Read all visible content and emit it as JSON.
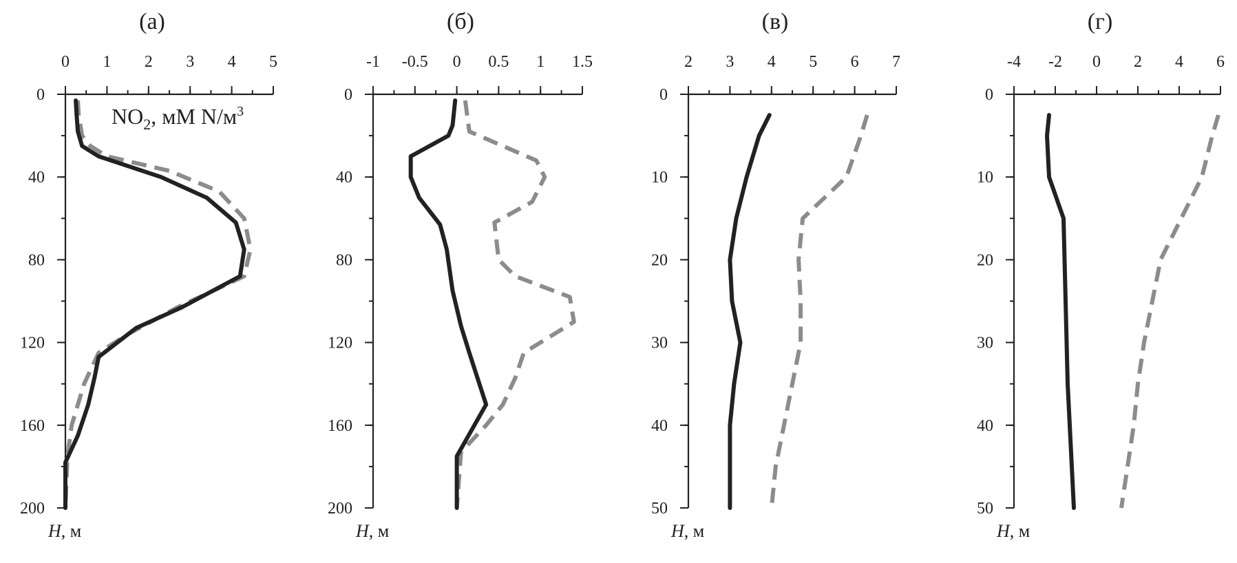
{
  "chart_data": [
    {
      "type": "line",
      "panel_label": "(а)",
      "annotation": {
        "main": "NO",
        "sub": "2",
        "rest": ", мМ N/м",
        "sup": "3"
      },
      "ylabel": {
        "italic": "H",
        "rest": ", м"
      },
      "xlim": [
        0,
        5
      ],
      "ylim": [
        0,
        200
      ],
      "y_inverted": true,
      "x_axis_position": "top",
      "xticks": [
        0,
        1,
        2,
        3,
        4,
        5
      ],
      "yticks": [
        0,
        40,
        80,
        120,
        160,
        200
      ],
      "y_minor_step": 20,
      "x_minor_step": 0.5,
      "series": [
        {
          "style": "solid",
          "color": "#222222",
          "points": [
            [
              0.25,
              3
            ],
            [
              0.27,
              10
            ],
            [
              0.3,
              18
            ],
            [
              0.4,
              25
            ],
            [
              0.8,
              30
            ],
            [
              2.3,
              40
            ],
            [
              3.4,
              50
            ],
            [
              4.1,
              62
            ],
            [
              4.3,
              75
            ],
            [
              4.2,
              88
            ],
            [
              2.8,
              103
            ],
            [
              1.7,
              113
            ],
            [
              0.8,
              127
            ],
            [
              0.7,
              137
            ],
            [
              0.55,
              150
            ],
            [
              0.3,
              165
            ],
            [
              0.0,
              178
            ],
            [
              0.0,
              200
            ]
          ]
        },
        {
          "style": "dashed",
          "color": "#8c8c8c",
          "points": [
            [
              0.3,
              3
            ],
            [
              0.32,
              10
            ],
            [
              0.4,
              20
            ],
            [
              0.6,
              25
            ],
            [
              1.0,
              30
            ],
            [
              2.5,
              37
            ],
            [
              3.7,
              47
            ],
            [
              4.3,
              60
            ],
            [
              4.45,
              75
            ],
            [
              4.3,
              88
            ],
            [
              2.7,
              103
            ],
            [
              1.5,
              116
            ],
            [
              0.8,
              125
            ],
            [
              0.45,
              140
            ],
            [
              0.15,
              160
            ],
            [
              0.05,
              175
            ],
            [
              0.0,
              200
            ]
          ]
        }
      ]
    },
    {
      "type": "line",
      "panel_label": "(б)",
      "ylabel": {
        "italic": "H",
        "rest": ", м"
      },
      "xlim": [
        -1,
        1.5
      ],
      "ylim": [
        0,
        200
      ],
      "y_inverted": true,
      "x_axis_position": "top",
      "xticks": [
        -1,
        -0.5,
        0,
        0.5,
        1,
        1.5
      ],
      "xtick_labels": [
        "-1",
        "-0.5",
        "0",
        "0.5",
        "1",
        "1.5"
      ],
      "yticks": [
        0,
        40,
        80,
        120,
        160,
        200
      ],
      "y_minor_step": 20,
      "x_minor_step": 0.25,
      "series": [
        {
          "style": "solid",
          "color": "#222222",
          "points": [
            [
              -0.02,
              3
            ],
            [
              -0.05,
              15
            ],
            [
              -0.1,
              20
            ],
            [
              -0.55,
              30
            ],
            [
              -0.55,
              40
            ],
            [
              -0.45,
              50
            ],
            [
              -0.2,
              63
            ],
            [
              -0.12,
              75
            ],
            [
              -0.05,
              95
            ],
            [
              0.05,
              112
            ],
            [
              0.15,
              125
            ],
            [
              0.35,
              150
            ],
            [
              0.0,
              175
            ],
            [
              0.0,
              200
            ]
          ]
        },
        {
          "style": "dashed",
          "color": "#8c8c8c",
          "points": [
            [
              0.1,
              3
            ],
            [
              0.15,
              18
            ],
            [
              0.55,
              25
            ],
            [
              0.95,
              32
            ],
            [
              1.05,
              40
            ],
            [
              0.9,
              52
            ],
            [
              0.45,
              62
            ],
            [
              0.5,
              80
            ],
            [
              0.7,
              88
            ],
            [
              1.35,
              98
            ],
            [
              1.4,
              110
            ],
            [
              0.8,
              125
            ],
            [
              0.7,
              137
            ],
            [
              0.55,
              150
            ],
            [
              0.35,
              160
            ],
            [
              0.05,
              173
            ],
            [
              0.0,
              200
            ]
          ]
        }
      ]
    },
    {
      "type": "line",
      "panel_label": "(в)",
      "ylabel": {
        "italic": "H",
        "rest": ", м"
      },
      "xlim": [
        2,
        7
      ],
      "ylim": [
        0,
        50
      ],
      "y_inverted": true,
      "x_axis_position": "top",
      "xticks": [
        2,
        3,
        4,
        5,
        6,
        7
      ],
      "yticks": [
        0,
        10,
        20,
        30,
        40,
        50
      ],
      "y_minor_step": 5,
      "x_minor_step": 0.5,
      "series": [
        {
          "style": "solid",
          "color": "#222222",
          "points": [
            [
              3.95,
              2.5
            ],
            [
              3.7,
              5
            ],
            [
              3.4,
              10
            ],
            [
              3.15,
              15
            ],
            [
              3.0,
              20
            ],
            [
              3.05,
              25
            ],
            [
              3.25,
              30
            ],
            [
              3.1,
              35
            ],
            [
              3.0,
              40
            ],
            [
              3.0,
              45
            ],
            [
              3.0,
              50
            ]
          ]
        },
        {
          "style": "dashed",
          "color": "#8c8c8c",
          "points": [
            [
              6.3,
              2.5
            ],
            [
              6.15,
              5
            ],
            [
              5.8,
              10
            ],
            [
              4.75,
              15
            ],
            [
              4.65,
              20
            ],
            [
              4.7,
              25
            ],
            [
              4.7,
              30
            ],
            [
              4.5,
              35
            ],
            [
              4.3,
              40
            ],
            [
              4.1,
              45
            ],
            [
              4.0,
              50
            ]
          ]
        }
      ]
    },
    {
      "type": "line",
      "panel_label": "(г)",
      "ylabel": {
        "italic": "H",
        "rest": ", м"
      },
      "xlim": [
        -4,
        6
      ],
      "ylim": [
        0,
        50
      ],
      "y_inverted": true,
      "x_axis_position": "top",
      "xticks": [
        -4,
        -2,
        0,
        2,
        4,
        6
      ],
      "xtick_labels": [
        "-4",
        "-2",
        "0",
        "2",
        "4",
        "6"
      ],
      "yticks": [
        0,
        10,
        20,
        30,
        40,
        50
      ],
      "y_minor_step": 5,
      "x_minor_step": 1,
      "series": [
        {
          "style": "solid",
          "color": "#222222",
          "points": [
            [
              -2.3,
              2.5
            ],
            [
              -2.4,
              5
            ],
            [
              -2.3,
              10
            ],
            [
              -1.6,
              15
            ],
            [
              -1.55,
              20
            ],
            [
              -1.5,
              25
            ],
            [
              -1.45,
              30
            ],
            [
              -1.4,
              35
            ],
            [
              -1.3,
              40
            ],
            [
              -1.2,
              45
            ],
            [
              -1.1,
              50
            ]
          ]
        },
        {
          "style": "dashed",
          "color": "#8c8c8c",
          "points": [
            [
              5.9,
              2.5
            ],
            [
              5.6,
              5
            ],
            [
              5.1,
              10
            ],
            [
              4.1,
              15
            ],
            [
              3.1,
              20
            ],
            [
              2.7,
              25
            ],
            [
              2.3,
              30
            ],
            [
              2.0,
              35
            ],
            [
              1.8,
              40
            ],
            [
              1.5,
              45
            ],
            [
              1.2,
              50
            ]
          ]
        }
      ]
    }
  ]
}
